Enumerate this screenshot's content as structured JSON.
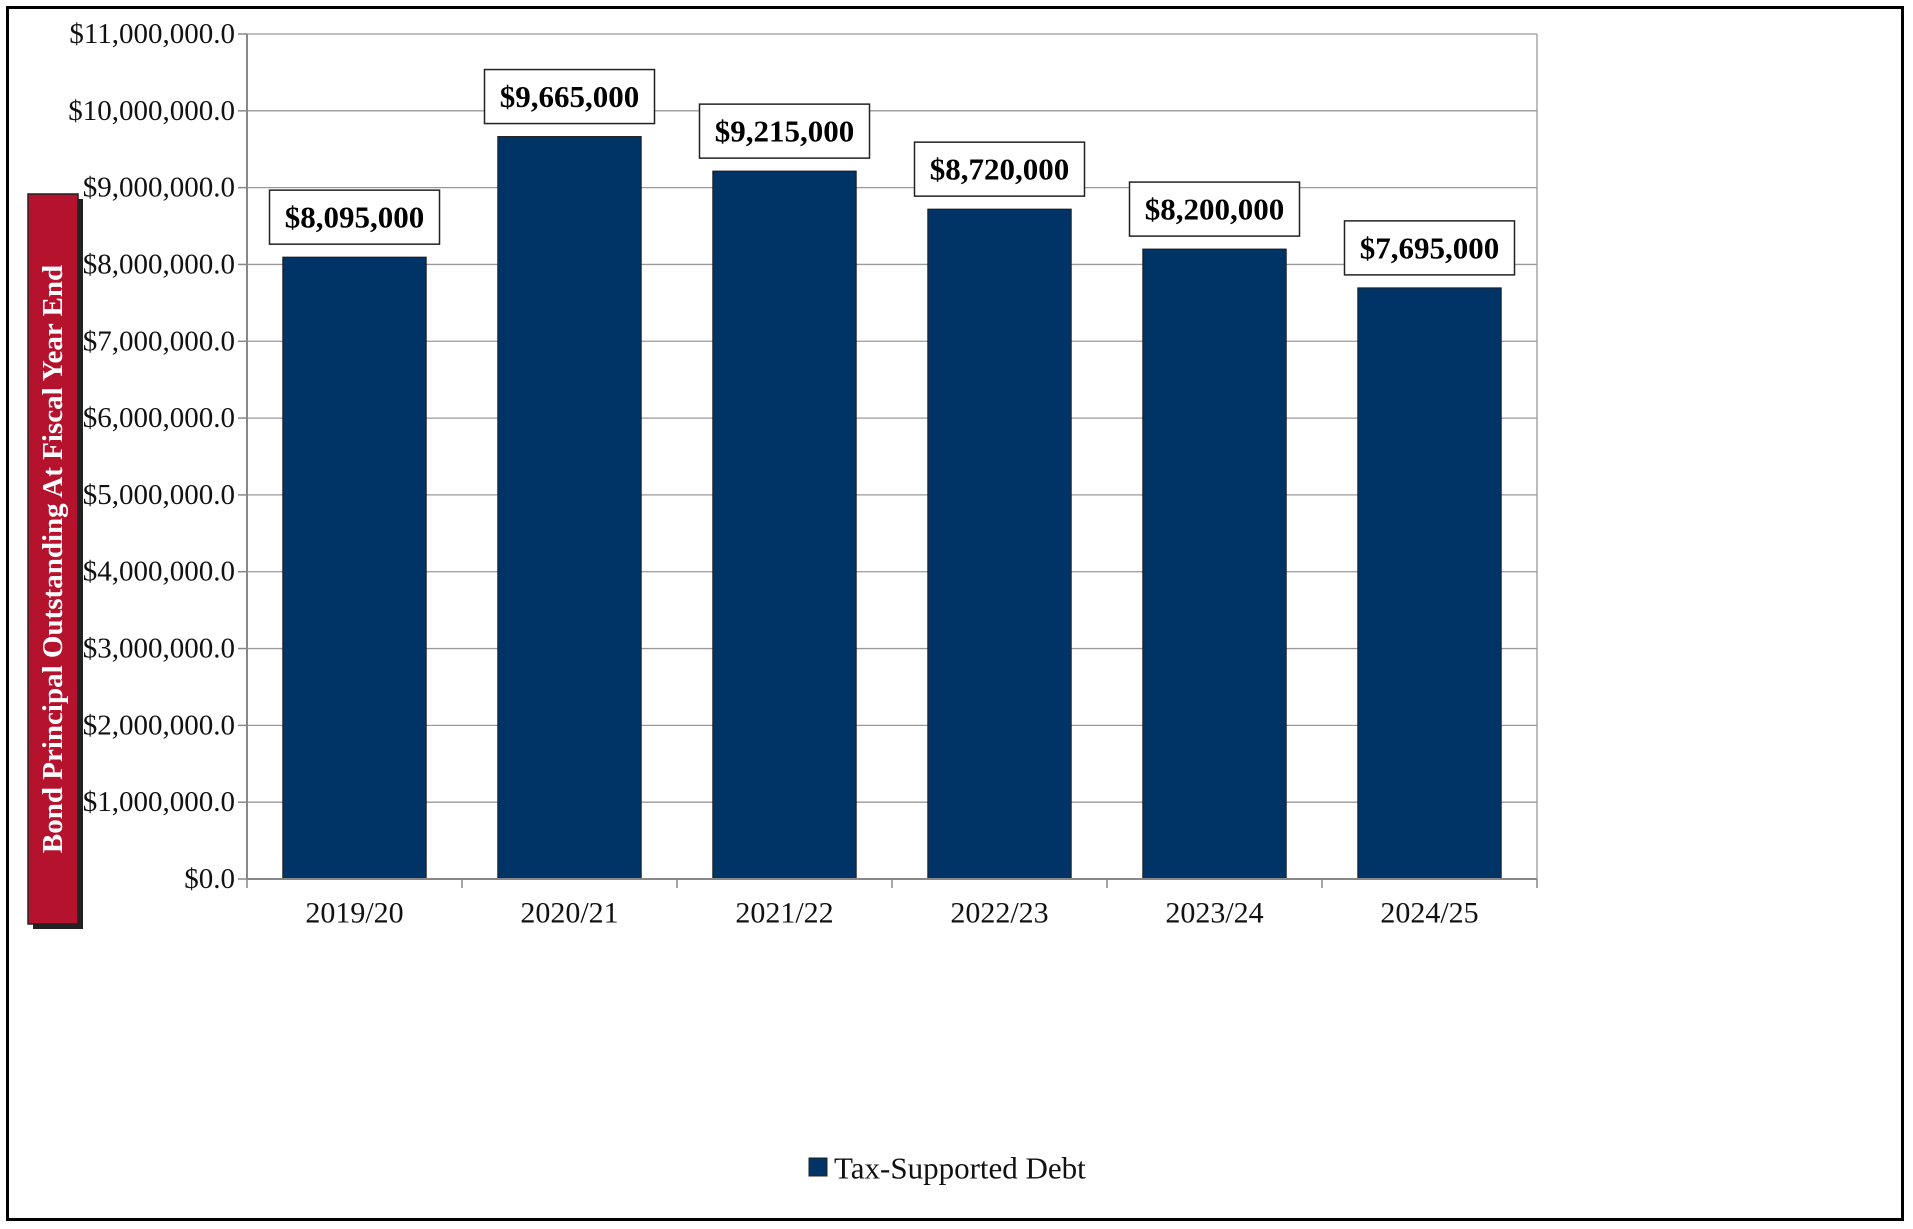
{
  "chart_data": {
    "type": "bar",
    "title": "",
    "xlabel": "",
    "ylabel": "Bond Principal Outstanding At Fiscal Year End",
    "categories": [
      "2019/20",
      "2020/21",
      "2021/22",
      "2022/23",
      "2023/24",
      "2024/25"
    ],
    "series": [
      {
        "name": "Tax-Supported Debt",
        "values": [
          8095000,
          9665000,
          9215000,
          8720000,
          8200000,
          7695000
        ],
        "color": "#003366"
      }
    ],
    "data_labels": [
      "$8,095,000",
      "$9,665,000",
      "$9,215,000",
      "$8,720,000",
      "$8,200,000",
      "$7,695,000"
    ],
    "ylim": [
      0,
      11000000
    ],
    "yticks": [
      0,
      1000000,
      2000000,
      3000000,
      4000000,
      5000000,
      6000000,
      7000000,
      8000000,
      9000000,
      10000000,
      11000000
    ],
    "ytick_labels": [
      "$0.0",
      "$1,000,000.0",
      "$2,000,000.0",
      "$3,000,000.0",
      "$4,000,000.0",
      "$5,000,000.0",
      "$6,000,000.0",
      "$7,000,000.0",
      "$8,000,000.0",
      "$9,000,000.0",
      "$10,000,000.0",
      "$11,000,000.0"
    ],
    "grid": true,
    "legend_position": "bottom",
    "ylabel_box_color": "#B5122E"
  }
}
